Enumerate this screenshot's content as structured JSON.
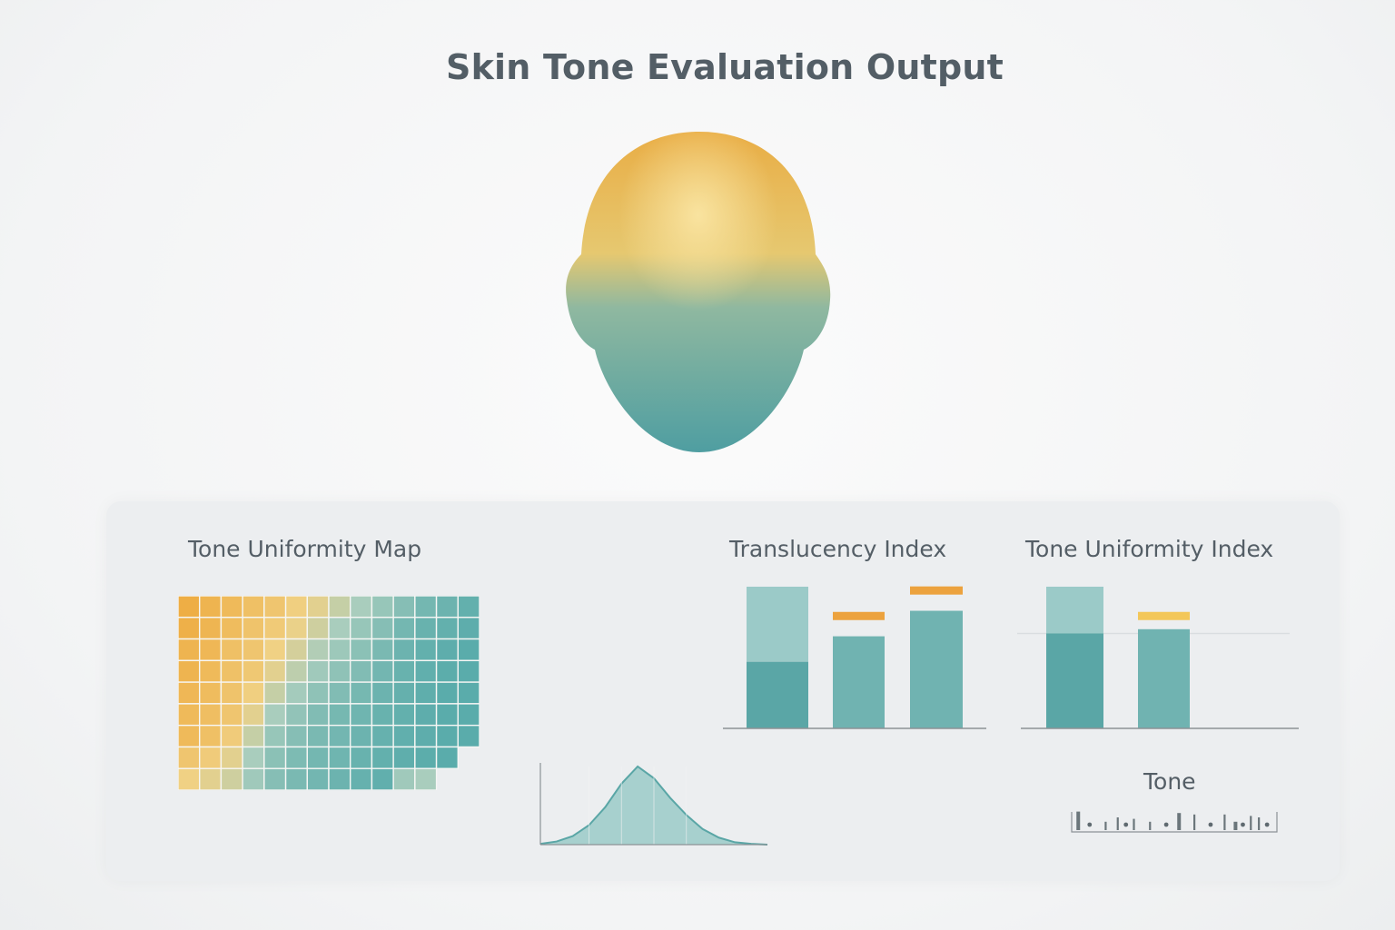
{
  "header": {
    "title": "Skin Tone Evaluation Output"
  },
  "figure": {
    "icon": "head-gradient-icon",
    "colors": {
      "top": "#e9ad45",
      "bottom": "#4f9ea1"
    }
  },
  "colors": {
    "teal": "#5aa6a6",
    "teal_light": "#9bcac8",
    "orange": "#eca23e",
    "yellow": "#f3c75a",
    "axis": "#8c9296",
    "grid": "#d9dde0"
  },
  "chart_data": [
    {
      "type": "heatmap",
      "title": "Tone Uniformity Map",
      "rows": 9,
      "cols": 14,
      "values": [
        [
          0.0,
          0.05,
          0.1,
          0.15,
          0.2,
          0.28,
          0.35,
          0.45,
          0.55,
          0.65,
          0.75,
          0.85,
          0.9,
          0.95
        ],
        [
          0.02,
          0.06,
          0.12,
          0.18,
          0.24,
          0.32,
          0.42,
          0.55,
          0.65,
          0.75,
          0.85,
          0.92,
          0.95,
          0.98
        ],
        [
          0.05,
          0.08,
          0.15,
          0.2,
          0.3,
          0.4,
          0.52,
          0.62,
          0.72,
          0.82,
          0.9,
          0.95,
          0.98,
          1.0
        ],
        [
          0.05,
          0.1,
          0.16,
          0.22,
          0.35,
          0.48,
          0.6,
          0.7,
          0.78,
          0.86,
          0.92,
          0.96,
          0.99,
          1.0
        ],
        [
          0.08,
          0.12,
          0.18,
          0.28,
          0.45,
          0.58,
          0.7,
          0.78,
          0.84,
          0.9,
          0.94,
          0.97,
          1.0,
          1.0
        ],
        [
          0.1,
          0.14,
          0.2,
          0.35,
          0.55,
          0.68,
          0.78,
          0.84,
          0.88,
          0.92,
          0.95,
          0.98,
          1.0,
          1.0
        ],
        [
          0.1,
          0.15,
          0.25,
          0.45,
          0.65,
          0.75,
          0.82,
          0.86,
          0.9,
          0.93,
          0.96,
          0.98,
          1.0,
          1.0
        ],
        [
          0.2,
          0.25,
          0.35,
          0.55,
          0.72,
          0.8,
          0.85,
          0.88,
          0.92,
          0.95,
          0.97,
          0.99,
          1.0,
          null
        ],
        [
          0.3,
          0.35,
          0.42,
          0.6,
          0.75,
          0.82,
          0.86,
          0.9,
          0.93,
          0.96,
          0.6,
          0.55,
          null,
          null
        ]
      ]
    },
    {
      "type": "area",
      "title": "",
      "x": [
        -3.0,
        -2.5,
        -2.0,
        -1.5,
        -1.0,
        -0.5,
        0.0,
        0.5,
        1.0,
        1.5,
        2.0,
        2.5,
        3.0,
        3.5,
        4.0
      ],
      "y": [
        0.01,
        0.04,
        0.11,
        0.25,
        0.48,
        0.78,
        1.0,
        0.85,
        0.6,
        0.38,
        0.2,
        0.09,
        0.03,
        0.01,
        0.0
      ]
    },
    {
      "type": "bar",
      "title": "Translucency Index",
      "categories": [
        "",
        "",
        ""
      ],
      "values": [
        0.47,
        0.65,
        0.83
      ],
      "totals": [
        1.0,
        null,
        null
      ],
      "markers": [
        null,
        0.79,
        0.97
      ],
      "ylim": [
        0,
        1
      ]
    },
    {
      "type": "bar",
      "title": "Tone Uniformity Index",
      "categories": [
        "",
        ""
      ],
      "values": [
        0.67,
        0.7
      ],
      "totals": [
        1.0,
        null
      ],
      "markers": [
        null,
        0.79
      ],
      "reference_line": 0.67,
      "ylim": [
        0,
        1
      ]
    },
    {
      "type": "scatter",
      "title": "Tone",
      "x": [
        0.02,
        0.08,
        0.16,
        0.22,
        0.26,
        0.3,
        0.38,
        0.46,
        0.52,
        0.6,
        0.68,
        0.75,
        0.8,
        0.84,
        0.88,
        0.92,
        0.96
      ],
      "y": [
        0.9,
        0.3,
        0.2,
        0.5,
        0.6,
        0.4,
        0.2,
        0.6,
        0.8,
        0.7,
        0.3,
        0.7,
        0.2,
        0.9,
        0.6,
        0.5,
        0.3
      ]
    }
  ]
}
